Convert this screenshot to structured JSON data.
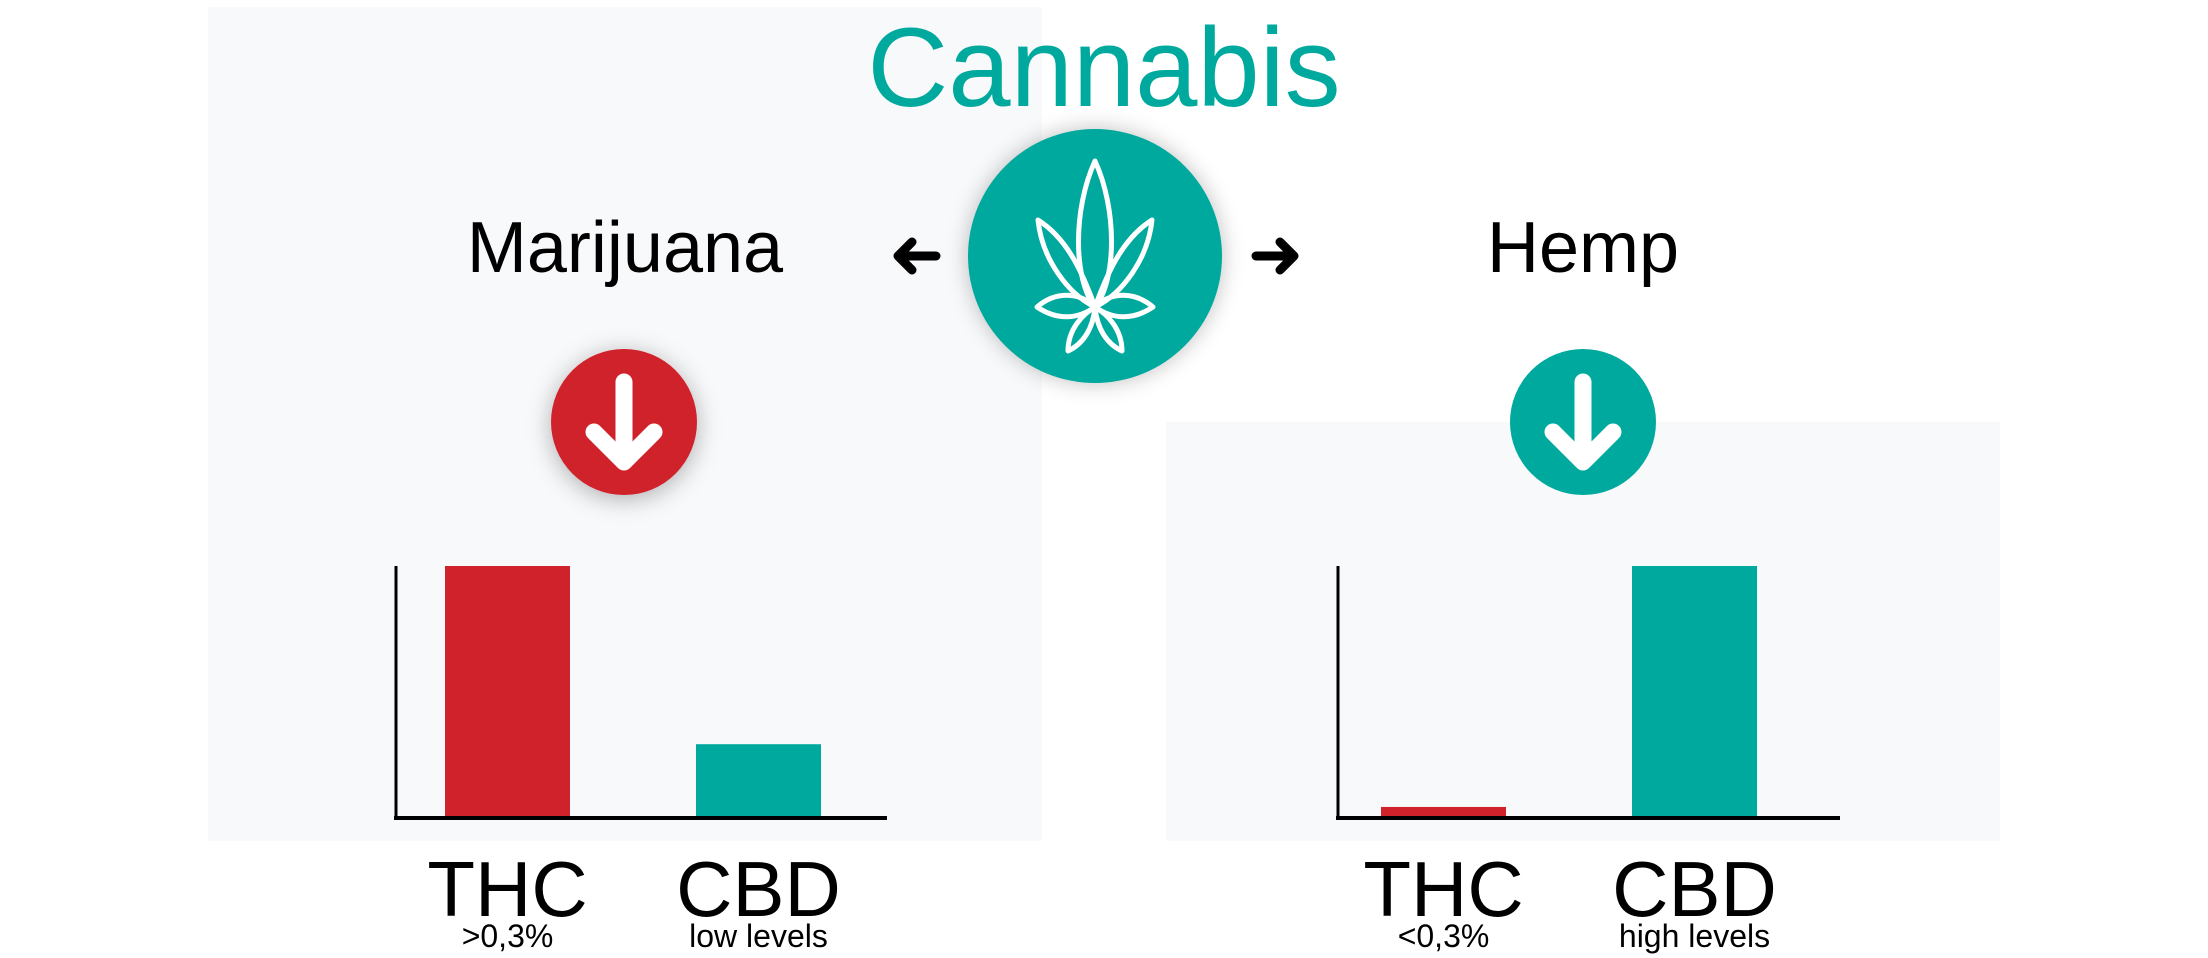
{
  "title": "Cannabis",
  "left": {
    "label": "Marijuana",
    "indicator_icon": "arrow-down-icon",
    "indicator_color": "#d0222a"
  },
  "right": {
    "label": "Hemp",
    "indicator_icon": "arrow-down-icon",
    "indicator_color": "#00a99d"
  },
  "center_icon": "cannabis-leaf-icon",
  "colors": {
    "teal": "#00a99d",
    "red": "#d0222a",
    "text": "#000000"
  },
  "chart_data": [
    {
      "type": "bar",
      "categories": [
        "THC",
        "CBD"
      ],
      "sublabels": [
        ">0,3%",
        "low levels"
      ],
      "values": [
        100,
        29
      ],
      "colors": [
        "#d0222a",
        "#00a99d"
      ],
      "ylim": [
        0,
        100
      ]
    },
    {
      "type": "bar",
      "categories": [
        "THC",
        "CBD"
      ],
      "sublabels": [
        "<0,3%",
        "high levels"
      ],
      "values": [
        4,
        100
      ],
      "colors": [
        "#d0222a",
        "#00a99d"
      ],
      "ylim": [
        0,
        100
      ]
    }
  ]
}
